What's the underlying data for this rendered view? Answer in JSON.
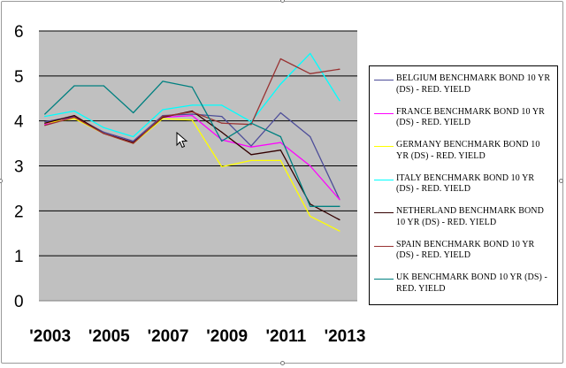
{
  "chart_data": {
    "type": "line",
    "title": "",
    "xlabel": "",
    "ylabel": "",
    "ylim": [
      0,
      6
    ],
    "xlim": [
      2003,
      2013
    ],
    "y_ticks": [
      "0",
      "1",
      "2",
      "3",
      "4",
      "5",
      "6"
    ],
    "x_tick_labels": [
      {
        "x": 2003,
        "label": "'2003"
      },
      {
        "x": 2005,
        "label": "'2005"
      },
      {
        "x": 2007,
        "label": "'2007"
      },
      {
        "x": 2009,
        "label": "'2009"
      },
      {
        "x": 2011,
        "label": "'2011"
      },
      {
        "x": 2013,
        "label": "'2013"
      }
    ],
    "grid": "horizontal",
    "plot_background": "#c0c0c0",
    "legend_position": "right",
    "series": [
      {
        "name": "BELGIUM BENCHMARK BOND 10 YR (DS) - RED. YIELD",
        "color": "#4d4d99",
        "x": [
          2003,
          2004,
          2005,
          2006,
          2007,
          2008,
          2009,
          2010,
          2011,
          2012,
          2013
        ],
        "y": [
          3.98,
          4.1,
          3.75,
          3.55,
          4.12,
          4.15,
          4.1,
          3.44,
          4.18,
          3.65,
          2.25
        ]
      },
      {
        "name": "FRANCE BENCHMARK BOND 10 YR (DS) - RED. YIELD",
        "color": "#ff00ff",
        "x": [
          2003,
          2004,
          2005,
          2006,
          2007,
          2008,
          2009,
          2010,
          2011,
          2012,
          2013
        ],
        "y": [
          3.92,
          4.08,
          3.72,
          3.52,
          4.08,
          4.12,
          3.58,
          3.42,
          3.52,
          3.0,
          2.25
        ]
      },
      {
        "name": "GERMANY BENCHMARK BOND 10 YR (DS) - RED. YIELD",
        "color": "#ffff00",
        "x": [
          2003,
          2004,
          2005,
          2006,
          2007,
          2008,
          2009,
          2010,
          2011,
          2012,
          2013
        ],
        "y": [
          3.95,
          4.05,
          3.72,
          3.5,
          4.05,
          4.02,
          2.98,
          3.12,
          3.12,
          1.88,
          1.55
        ]
      },
      {
        "name": "ITALY BENCHMARK BOND 10 YR (DS) - RED. YIELD",
        "color": "#00ffff",
        "x": [
          2003,
          2004,
          2005,
          2006,
          2007,
          2008,
          2009,
          2010,
          2011,
          2012,
          2013
        ],
        "y": [
          4.1,
          4.22,
          3.85,
          3.65,
          4.25,
          4.35,
          4.35,
          3.98,
          4.82,
          5.5,
          4.45
        ]
      },
      {
        "name": "NETHERLAND BENCHMARK BOND 10 YR (DS) - RED. YIELD",
        "color": "#330000",
        "x": [
          2003,
          2004,
          2005,
          2006,
          2007,
          2008,
          2009,
          2010,
          2011,
          2012,
          2013
        ],
        "y": [
          3.95,
          4.12,
          3.72,
          3.52,
          4.08,
          4.22,
          3.75,
          3.25,
          3.35,
          2.15,
          1.8
        ]
      },
      {
        "name": "SPAIN BENCHMARK BOND 10 YR (DS) - RED. YIELD",
        "color": "#993333",
        "x": [
          2003,
          2004,
          2005,
          2006,
          2007,
          2008,
          2009,
          2010,
          2011,
          2012,
          2013
        ],
        "y": [
          3.9,
          4.08,
          3.72,
          3.5,
          4.1,
          4.2,
          3.95,
          3.92,
          5.38,
          5.05,
          5.15
        ]
      },
      {
        "name": "UK BENCHMARK BOND 10 YR (DS) - RED. YIELD",
        "color": "#008080",
        "x": [
          2003,
          2004,
          2005,
          2006,
          2007,
          2008,
          2009,
          2010,
          2011,
          2012,
          2013
        ],
        "y": [
          4.15,
          4.78,
          4.78,
          4.18,
          4.88,
          4.75,
          3.55,
          3.95,
          3.65,
          2.1,
          2.1
        ]
      }
    ]
  },
  "legend_labels": [
    [
      "BELGIUM BENCHMARK BOND 10 YR",
      "(DS) - RED. YIELD"
    ],
    [
      "FRANCE BENCHMARK BOND 10 YR",
      "(DS) - RED. YIELD"
    ],
    [
      "GERMANY BENCHMARK BOND 10",
      "YR (DS) - RED. YIELD"
    ],
    [
      "ITALY BENCHMARK BOND 10 YR",
      "(DS) - RED. YIELD"
    ],
    [
      "NETHERLAND BENCHMARK BOND",
      "10 YR (DS) - RED. YIELD"
    ],
    [
      "SPAIN BENCHMARK BOND 10 YR",
      "(DS) - RED. YIELD"
    ],
    [
      "UK BENCHMARK BOND 10 YR (DS) -",
      "RED. YIELD"
    ]
  ]
}
